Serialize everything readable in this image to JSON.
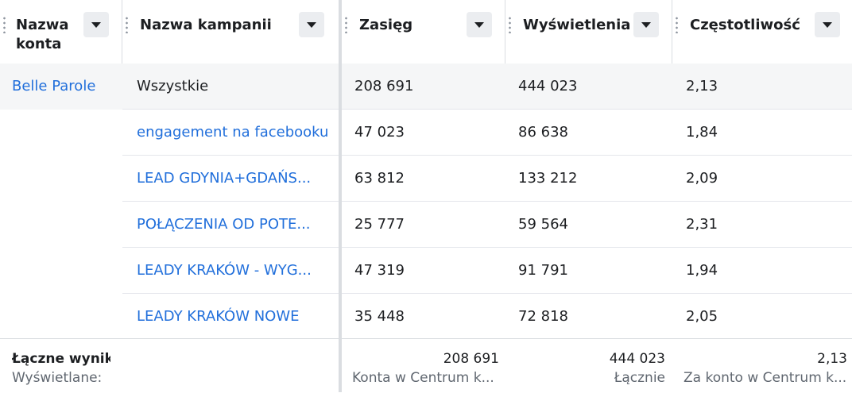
{
  "columns": [
    {
      "label": "Nazwa\nkonta",
      "line1": "Nazwa",
      "line2": "konta"
    },
    {
      "label": "Nazwa kampanii"
    },
    {
      "label": "Zasięg"
    },
    {
      "label": "Wyświetlenia"
    },
    {
      "label": "Częstotliwość"
    }
  ],
  "rows": [
    {
      "account": "Belle Parole",
      "campaign": "Wszystkie",
      "reach": "208 691",
      "impressions": "444 023",
      "frequency": "2,13"
    },
    {
      "account": "",
      "campaign": "engagement na facebooku",
      "reach": "47 023",
      "impressions": "86 638",
      "frequency": "1,84"
    },
    {
      "account": "",
      "campaign": "LEAD GDYNIA+GDAŃS...",
      "reach": "63 812",
      "impressions": "133 212",
      "frequency": "2,09"
    },
    {
      "account": "",
      "campaign": "POŁĄCZENIA OD POTE...",
      "reach": "25 777",
      "impressions": "59 564",
      "frequency": "2,31"
    },
    {
      "account": "",
      "campaign": "LEADY KRAKÓW - WYG...",
      "reach": "47 319",
      "impressions": "91 791",
      "frequency": "1,94"
    },
    {
      "account": "",
      "campaign": "LEADY KRAKÓW NOWE",
      "reach": "35 448",
      "impressions": "72 818",
      "frequency": "2,05"
    }
  ],
  "footer": {
    "title": "Łączne wyniki",
    "subtitle": "Wyświetlane:",
    "reach_value": "208 691",
    "reach_note": "Konta w Centrum k...",
    "impressions_value": "444 023",
    "impressions_note": "Łącznie",
    "frequency_value": "2,13",
    "frequency_note": "Za konto w Centrum k..."
  },
  "colors": {
    "link": "#216fdb",
    "header_button": "#ebedf0",
    "highlight_row": "#f5f6f7"
  }
}
